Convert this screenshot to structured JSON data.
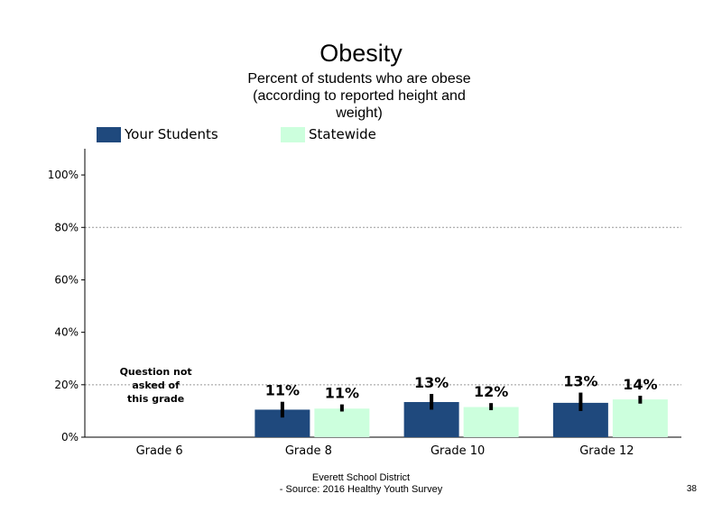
{
  "chart_data": {
    "type": "bar",
    "title": "Obesity",
    "subtitle": "Percent of students who are obese (according to reported height and weight)",
    "categories": [
      "Grade 6",
      "Grade 8",
      "Grade 10",
      "Grade 12"
    ],
    "series": [
      {
        "name": "Your Students",
        "values": [
          null,
          10.5,
          13.4,
          13.1
        ],
        "labels": [
          "",
          "11%",
          "13%",
          "13%"
        ],
        "error_low": [
          null,
          7.5,
          10.5,
          10.0
        ],
        "error_high": [
          null,
          13.5,
          16.5,
          17.0
        ]
      },
      {
        "name": "Statewide",
        "values": [
          null,
          10.9,
          11.5,
          14.4
        ],
        "labels": [
          "",
          "11%",
          "12%",
          "14%"
        ],
        "error_low": [
          null,
          9.8,
          10.3,
          12.8
        ],
        "error_high": [
          null,
          12.5,
          13.0,
          15.8
        ]
      }
    ],
    "ylim": [
      0,
      110
    ],
    "yticks": [
      "0%",
      "20%",
      "40%",
      "60%",
      "80%",
      "100%"
    ],
    "ytick_values": [
      0,
      20,
      40,
      60,
      80,
      100
    ],
    "gridlines": [
      20,
      80
    ],
    "annotation": "Question not asked of this grade",
    "legend_position": "top",
    "colors": {
      "series1": "#1f497d",
      "series2": "#ccffdd",
      "grid": "#999999",
      "errorbar": "#000000"
    }
  },
  "footer": {
    "district": "Everett School District",
    "source": "- Source: 2016 Healthy Youth Survey",
    "page": "38"
  }
}
